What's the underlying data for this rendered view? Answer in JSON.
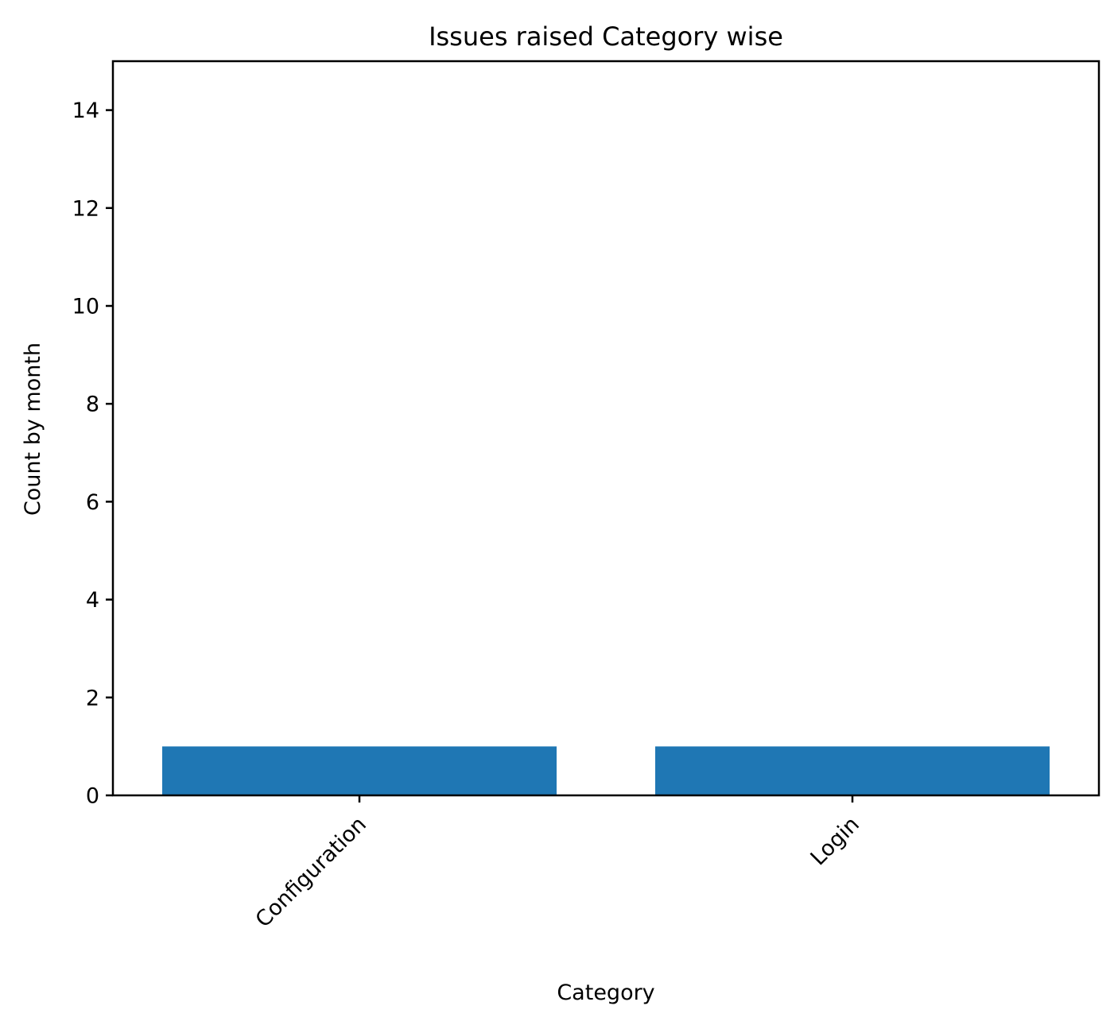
{
  "chart_data": {
    "type": "bar",
    "title": "Issues raised Category wise",
    "xlabel": "Category",
    "ylabel": "Count by month",
    "categories": [
      "Configuration",
      "Login"
    ],
    "values": [
      1,
      1
    ],
    "ylim": [
      0,
      15
    ],
    "yticks": [
      0,
      2,
      4,
      6,
      8,
      10,
      12,
      14
    ],
    "grid": false,
    "legend": "none",
    "x_tick_rotation": "45",
    "bar_color": "#1f77b4"
  }
}
